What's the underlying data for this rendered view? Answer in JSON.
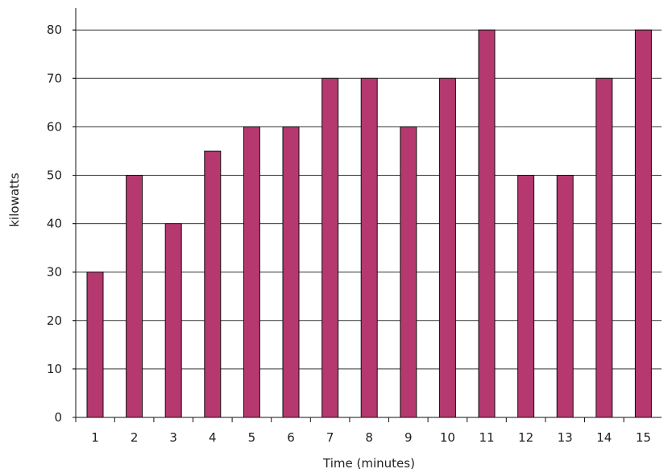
{
  "chart_data": {
    "type": "bar",
    "title": "",
    "xlabel": "Time (minutes)",
    "ylabel": "kilowatts",
    "categories": [
      "1",
      "2",
      "3",
      "4",
      "5",
      "6",
      "7",
      "8",
      "9",
      "10",
      "11",
      "12",
      "13",
      "14",
      "15"
    ],
    "values": [
      30,
      50,
      40,
      55,
      60,
      60,
      70,
      70,
      60,
      70,
      80,
      50,
      50,
      70,
      80
    ],
    "ylim": [
      0,
      85
    ],
    "yticks": [
      0,
      10,
      20,
      30,
      40,
      50,
      60,
      70,
      80
    ],
    "ytick_labels": [
      "0",
      "10",
      "20",
      "30",
      "40",
      "50",
      "60",
      "70",
      "80"
    ],
    "grid": "horizontal",
    "legend": "none",
    "bar_color": "#b5386f",
    "bar_edge_color": "#111111",
    "axis_color": "#111111"
  }
}
